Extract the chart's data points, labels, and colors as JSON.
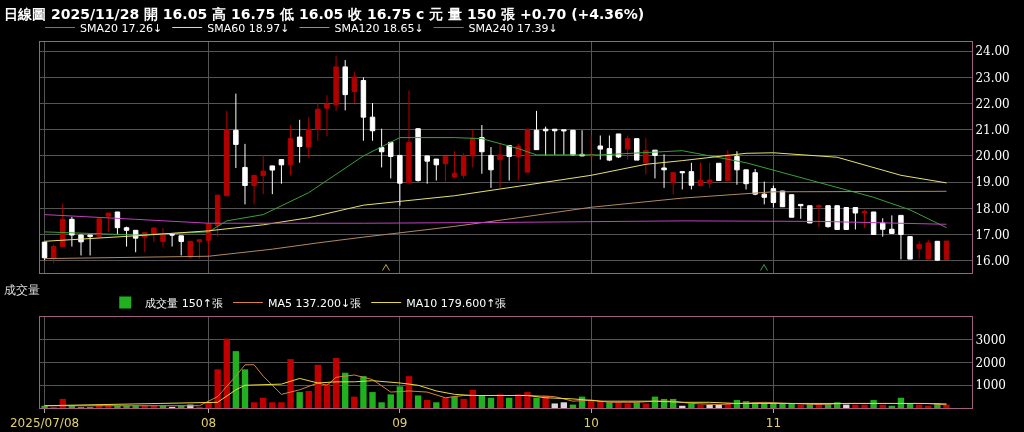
{
  "chart_data": [
    {
      "type": "candlestick",
      "title": "日線圖 2025/11/28 開 16.05 高 16.75 低 16.05 收 16.75 c 元 量 150 張 +0.70 (+4.36%)",
      "categories": [
        "2025/07/08",
        null,
        null,
        null,
        null,
        null,
        null,
        null,
        null,
        null,
        null,
        null,
        null,
        null,
        null,
        null,
        null,
        null,
        "08",
        null,
        null,
        null,
        null,
        null,
        null,
        null,
        null,
        null,
        null,
        null,
        null,
        null,
        null,
        null,
        null,
        null,
        null,
        null,
        null,
        "09",
        null,
        null,
        null,
        null,
        null,
        null,
        null,
        null,
        null,
        null,
        null,
        null,
        null,
        null,
        null,
        null,
        null,
        null,
        null,
        null,
        "10",
        null,
        null,
        null,
        null,
        null,
        null,
        null,
        null,
        null,
        null,
        null,
        null,
        null,
        null,
        null,
        null,
        null,
        null,
        null,
        "11",
        null,
        null,
        null,
        null,
        null,
        null,
        null,
        null,
        null,
        null,
        null,
        null,
        null,
        null,
        null,
        null,
        null,
        null,
        null
      ],
      "ohlc": [
        [
          16.71,
          16.71,
          16.02,
          16.11
        ],
        [
          16.1,
          16.62,
          15.9,
          16.54
        ],
        [
          16.54,
          18.18,
          16.54,
          17.58
        ],
        [
          17.58,
          17.67,
          16.54,
          16.98
        ],
        [
          16.98,
          17.0,
          16.2,
          16.72
        ],
        [
          16.98,
          16.98,
          16.2,
          16.92
        ],
        [
          16.92,
          17.6,
          16.92,
          17.6
        ],
        [
          17.7,
          17.82,
          17.1,
          17.82
        ],
        [
          17.86,
          17.86,
          16.98,
          17.26
        ],
        [
          17.26,
          17.3,
          16.54,
          17.16
        ],
        [
          17.16,
          17.16,
          16.32,
          16.86
        ],
        [
          16.9,
          17.07,
          16.32,
          17.07
        ],
        [
          17.04,
          17.25,
          16.72,
          17.25
        ],
        [
          16.73,
          17.25,
          16.54,
          17.0
        ],
        [
          17.0,
          17.0,
          16.54,
          16.98
        ],
        [
          16.95,
          16.95,
          16.2,
          16.73
        ],
        [
          16.14,
          16.74,
          16.08,
          16.74
        ],
        [
          16.72,
          16.8,
          16.08,
          16.8
        ],
        [
          16.78,
          17.4,
          16.2,
          17.4
        ],
        [
          17.34,
          18.5,
          16.92,
          18.5
        ],
        [
          18.48,
          21.72,
          18.48,
          21.0
        ],
        [
          20.98,
          22.38,
          19.54,
          20.44
        ],
        [
          19.56,
          20.46,
          18.15,
          18.87
        ],
        [
          18.87,
          19.26,
          18.15,
          19.26
        ],
        [
          19.25,
          20.04,
          18.54,
          19.42
        ],
        [
          19.62,
          19.62,
          18.54,
          19.46
        ],
        [
          19.86,
          19.86,
          18.94,
          19.66
        ],
        [
          19.66,
          21.18,
          19.26,
          20.66
        ],
        [
          20.72,
          21.38,
          19.74,
          20.36
        ],
        [
          20.34,
          21.48,
          19.92,
          21.02
        ],
        [
          21.02,
          22.02,
          20.58,
          21.78
        ],
        [
          21.82,
          22.32,
          20.76,
          21.98
        ],
        [
          21.96,
          23.82,
          21.72,
          23.4
        ],
        [
          23.4,
          23.66,
          21.74,
          22.34
        ],
        [
          22.46,
          23.22,
          22.02,
          23.01
        ],
        [
          22.88,
          23.0,
          20.58,
          21.48
        ],
        [
          21.48,
          22.02,
          20.58,
          20.96
        ],
        [
          20.32,
          21.04,
          19.56,
          20.16
        ],
        [
          20.52,
          20.52,
          19.14,
          19.98
        ],
        [
          20.02,
          20.02,
          18.1,
          18.96
        ],
        [
          18.98,
          22.5,
          18.98,
          20.52
        ],
        [
          21.04,
          21.06,
          19.02,
          19.06
        ],
        [
          20.0,
          20.0,
          18.94,
          19.8
        ],
        [
          19.88,
          19.88,
          19.06,
          19.66
        ],
        [
          19.7,
          19.98,
          19.02,
          19.98
        ],
        [
          19.2,
          20.18,
          19.14,
          19.34
        ],
        [
          19.26,
          20.1,
          19.14,
          20.0
        ],
        [
          20.0,
          21.0,
          19.56,
          20.68
        ],
        [
          20.7,
          21.18,
          19.32,
          20.16
        ],
        [
          20.02,
          20.34,
          18.78,
          19.47
        ],
        [
          19.86,
          20.46,
          18.78,
          20.04
        ],
        [
          20.4,
          20.4,
          19.06,
          19.98
        ],
        [
          19.98,
          20.46,
          19.08,
          20.36
        ],
        [
          19.38,
          21.02,
          19.38,
          21.02
        ],
        [
          20.98,
          21.72,
          20.24,
          20.24
        ],
        [
          21.02,
          21.12,
          20.02,
          20.96
        ],
        [
          21.02,
          21.02,
          20.04,
          20.96
        ],
        [
          21.0,
          21.0,
          20.04,
          20.96
        ],
        [
          20.98,
          20.98,
          20.0,
          20.04
        ],
        [
          20.06,
          20.98,
          20.0,
          20.0
        ],
        [
          20.0,
          20.78,
          20.0,
          20.06
        ],
        [
          20.38,
          20.78,
          19.86,
          20.26
        ],
        [
          20.28,
          20.78,
          19.8,
          19.84
        ],
        [
          20.84,
          20.84,
          19.92,
          19.96
        ],
        [
          20.26,
          20.78,
          19.86,
          20.66
        ],
        [
          20.66,
          20.66,
          19.84,
          19.84
        ],
        [
          19.74,
          20.68,
          19.3,
          20.2
        ],
        [
          20.22,
          20.22,
          19.14,
          20.02
        ],
        [
          19.54,
          20.06,
          18.78,
          19.47
        ],
        [
          18.99,
          19.36,
          18.54,
          19.36
        ],
        [
          19.4,
          19.4,
          18.72,
          19.36
        ],
        [
          19.4,
          19.74,
          18.72,
          18.88
        ],
        [
          18.87,
          19.74,
          18.84,
          19.06
        ],
        [
          18.96,
          19.74,
          18.78,
          19.08
        ],
        [
          19.72,
          19.72,
          19.06,
          19.06
        ],
        [
          19.06,
          20.22,
          19.06,
          20.04
        ],
        [
          19.98,
          20.18,
          18.9,
          19.47
        ],
        [
          19.47,
          19.47,
          18.72,
          18.94
        ],
        [
          19.36,
          19.5,
          18.5,
          18.54
        ],
        [
          18.54,
          19.02,
          18.15,
          18.42
        ],
        [
          18.75,
          18.87,
          18.03,
          18.22
        ],
        [
          18.66,
          18.66,
          18.06,
          18.06
        ],
        [
          18.52,
          18.52,
          17.66,
          17.66
        ],
        [
          18.15,
          18.15,
          17.6,
          18.1
        ],
        [
          18.1,
          18.1,
          17.44,
          17.44
        ],
        [
          18.05,
          18.15,
          17.28,
          18.1
        ],
        [
          18.1,
          18.1,
          17.26,
          17.3
        ],
        [
          18.1,
          18.1,
          17.19,
          17.19
        ],
        [
          18.03,
          18.03,
          17.19,
          17.19
        ],
        [
          18.03,
          18.03,
          17.19,
          17.82
        ],
        [
          17.82,
          17.94,
          17.25,
          17.88
        ],
        [
          17.86,
          17.86,
          17.0,
          17.0
        ],
        [
          17.44,
          17.62,
          16.92,
          17.2
        ],
        [
          17.2,
          17.73,
          17.04,
          17.04
        ],
        [
          17.73,
          17.73,
          16.05,
          17.0
        ],
        [
          16.92,
          16.92,
          16.06,
          16.06
        ],
        [
          16.47,
          16.74,
          16.08,
          16.62
        ],
        [
          16.06,
          16.8,
          16.06,
          16.68
        ],
        [
          16.74,
          16.74,
          15.99,
          16.02
        ],
        [
          16.05,
          16.75,
          16.05,
          16.75
        ]
      ],
      "colors": [
        "#ffffff",
        "#b00000",
        "#b00000",
        "#ffffff",
        "#ffffff",
        "#ffffff",
        "#b00000",
        "#b00000",
        "#ffffff",
        "#ffffff",
        "#ffffff",
        "#b00000",
        "#b00000",
        "#b00000",
        "#ffffff",
        "#ffffff",
        "#b00000",
        "#b00000",
        "#b00000",
        "#b00000",
        "#b00000",
        "#ffffff",
        "#ffffff",
        "#b00000",
        "#b00000",
        "#ffffff",
        "#ffffff",
        "#b00000",
        "#ffffff",
        "#b00000",
        "#b00000",
        "#b00000",
        "#b00000",
        "#ffffff",
        "#b00000",
        "#ffffff",
        "#ffffff",
        "#ffffff",
        "#ffffff",
        "#ffffff",
        "#b00000",
        "#ffffff",
        "#ffffff",
        "#ffffff",
        "#b00000",
        "#b00000",
        "#b00000",
        "#b00000",
        "#ffffff",
        "#ffffff",
        "#b00000",
        "#ffffff",
        "#b00000",
        "#b00000",
        "#ffffff",
        "#ffffff",
        "#ffffff",
        "#ffffff",
        "#ffffff",
        "#ffffff",
        "#b00000",
        "#ffffff",
        "#ffffff",
        "#ffffff",
        "#b00000",
        "#ffffff",
        "#b00000",
        "#ffffff",
        "#ffffff",
        "#b00000",
        "#ffffff",
        "#ffffff",
        "#b00000",
        "#b00000",
        "#ffffff",
        "#b00000",
        "#ffffff",
        "#ffffff",
        "#ffffff",
        "#ffffff",
        "#ffffff",
        "#ffffff",
        "#ffffff",
        "#ffffff",
        "#ffffff",
        "#b00000",
        "#ffffff",
        "#ffffff",
        "#ffffff",
        "#ffffff",
        "#b00000",
        "#ffffff",
        "#ffffff",
        "#ffffff",
        "#ffffff",
        "#ffffff",
        "#b00000",
        "#b00000",
        "#ffffff",
        "#b00000"
      ],
      "series": [
        {
          "type": "line",
          "name": "SMA20 17.26↓",
          "color": "#3aa03a",
          "values": [
            17.1,
            null,
            null,
            null,
            null,
            null,
            null,
            null,
            null,
            null,
            16.98,
            null,
            null,
            null,
            null,
            null,
            null,
            null,
            17.1,
            null,
            17.52,
            null,
            null,
            null,
            17.76,
            null,
            null,
            null,
            null,
            18.6,
            null,
            null,
            null,
            null,
            null,
            20.0,
            null,
            null,
            null,
            20.7,
            null,
            null,
            null,
            null,
            null,
            20.7,
            null,
            null,
            20.66,
            null,
            null,
            null,
            20.28,
            null,
            20.04,
            null,
            null,
            null,
            null,
            null,
            null,
            20.04,
            null,
            null,
            null,
            null,
            null,
            null,
            null,
            null,
            20.2,
            null,
            null,
            null,
            null,
            null,
            null,
            19.74,
            null,
            null,
            null,
            null,
            null,
            null,
            19.08,
            null,
            null,
            null,
            null,
            null,
            null,
            18.42,
            null,
            null,
            null,
            17.94,
            null,
            null,
            null,
            17.26
          ]
        },
        {
          "type": "line",
          "name": "SMA60 18.97↓",
          "color": "#e8e070",
          "values": [
            16.74,
            null,
            null,
            null,
            null,
            null,
            null,
            null,
            null,
            null,
            16.95,
            null,
            null,
            null,
            null,
            null,
            null,
            null,
            17.14,
            null,
            null,
            null,
            null,
            null,
            17.37,
            null,
            null,
            null,
            null,
            17.64,
            null,
            null,
            null,
            null,
            null,
            18.12,
            null,
            null,
            null,
            null,
            null,
            null,
            null,
            null,
            null,
            18.48,
            null,
            null,
            null,
            null,
            null,
            null,
            18.84,
            null,
            null,
            null,
            null,
            null,
            null,
            null,
            19.26,
            null,
            null,
            null,
            null,
            null,
            19.68,
            null,
            null,
            null,
            19.82,
            null,
            null,
            null,
            null,
            null,
            null,
            20.1,
            null,
            null,
            20.12,
            null,
            null,
            null,
            null,
            null,
            null,
            19.95,
            null,
            null,
            null,
            null,
            null,
            null,
            19.26,
            null,
            null,
            null,
            null,
            18.97
          ]
        },
        {
          "type": "line",
          "name": "SMA120 18.65↓",
          "color": "#b08860",
          "values": [
            16.08,
            null,
            null,
            null,
            null,
            null,
            null,
            null,
            null,
            null,
            null,
            null,
            null,
            null,
            null,
            null,
            null,
            null,
            16.17,
            null,
            null,
            null,
            null,
            null,
            null,
            16.44,
            null,
            null,
            null,
            null,
            16.68,
            null,
            null,
            null,
            null,
            16.9,
            null,
            null,
            null,
            null,
            null,
            null,
            null,
            null,
            null,
            17.31,
            null,
            null,
            null,
            null,
            null,
            null,
            17.64,
            null,
            null,
            null,
            null,
            null,
            null,
            null,
            18.04,
            null,
            null,
            null,
            null,
            null,
            null,
            null,
            null,
            null,
            18.39,
            null,
            null,
            null,
            null,
            null,
            null,
            null,
            null,
            null,
            18.63,
            null,
            null,
            null,
            null,
            null,
            null,
            null,
            null,
            null,
            null,
            null,
            null,
            null,
            null,
            null,
            null,
            null,
            null,
            18.65
          ]
        },
        {
          "type": "line",
          "name": "SMA240 17.39↓",
          "color": "#c040c0",
          "values": [
            17.76,
            null,
            null,
            null,
            null,
            null,
            null,
            null,
            null,
            null,
            17.58,
            null,
            null,
            null,
            null,
            null,
            null,
            null,
            17.43,
            null,
            null,
            null,
            null,
            null,
            null,
            null,
            null,
            null,
            null,
            null,
            null,
            null,
            null,
            null,
            null,
            17.43,
            null,
            null,
            null,
            null,
            null,
            null,
            null,
            null,
            null,
            null,
            null,
            null,
            null,
            null,
            17.46,
            null,
            null,
            null,
            null,
            null,
            null,
            null,
            null,
            null,
            null,
            null,
            null,
            null,
            null,
            null,
            null,
            null,
            null,
            null,
            17.52,
            null,
            null,
            null,
            null,
            null,
            null,
            null,
            null,
            null,
            null,
            null,
            null,
            null,
            null,
            17.5,
            null,
            null,
            null,
            null,
            null,
            null,
            null,
            null,
            null,
            null,
            null,
            null,
            null,
            17.39
          ]
        }
      ],
      "ylim": [
        15.53,
        24.35
      ],
      "yticks": [
        {
          "value": 16,
          "label": "16.00"
        },
        {
          "value": 17,
          "label": "17.00"
        },
        {
          "value": 18,
          "label": "18.00"
        },
        {
          "value": 19,
          "label": "19.00"
        },
        {
          "value": 20,
          "label": "20.00"
        },
        {
          "value": 21,
          "label": "21.00"
        },
        {
          "value": 22,
          "label": "22.00"
        },
        {
          "value": 23,
          "label": "23.00"
        },
        {
          "value": 24,
          "label": "24.00"
        }
      ],
      "grid": true,
      "legend": "top left",
      "tick_labels": "y"
    },
    {
      "type": "bar",
      "title": "成交量",
      "categories": [
        "2025/07/08",
        null,
        null,
        null,
        null,
        null,
        null,
        null,
        null,
        null,
        null,
        null,
        null,
        null,
        null,
        null,
        null,
        null,
        "08",
        null,
        null,
        null,
        null,
        null,
        null,
        null,
        null,
        null,
        null,
        null,
        null,
        null,
        null,
        null,
        null,
        null,
        null,
        null,
        null,
        "09",
        null,
        null,
        null,
        null,
        null,
        null,
        null,
        null,
        null,
        null,
        null,
        null,
        null,
        null,
        null,
        null,
        null,
        null,
        null,
        null,
        "10",
        null,
        null,
        null,
        null,
        null,
        null,
        null,
        null,
        null,
        null,
        null,
        null,
        null,
        null,
        null,
        null,
        null,
        null,
        null,
        "11",
        null,
        null,
        null,
        null,
        null,
        null,
        null,
        null,
        null,
        null,
        null,
        null,
        null,
        null,
        null,
        null,
        null,
        null,
        null
      ],
      "series": [
        {
          "type": "bar",
          "name": "成交量 150↑張",
          "colors": [
            "#20b020",
            "#c00000",
            "#c00000",
            "#20b020",
            "#20b020",
            "#20b020",
            "#c00000",
            "#c00000",
            "#20b020",
            "#20b020",
            "#20b020",
            "#c00000",
            "#c00000",
            "#20b020",
            "#d8d8d8",
            "#20b020",
            "#d8d8d8",
            "#c00000",
            "#c00000",
            "#c00000",
            "#c00000",
            "#20b020",
            "#20b020",
            "#c00000",
            "#c00000",
            "#c00000",
            "#c00000",
            "#c00000",
            "#20b020",
            "#c00000",
            "#c00000",
            "#c00000",
            "#c00000",
            "#20b020",
            "#c00000",
            "#20b020",
            "#20b020",
            "#20b020",
            "#20b020",
            "#20b020",
            "#c00000",
            "#20b020",
            "#c00000",
            "#20b020",
            "#c00000",
            "#20b020",
            "#c00000",
            "#c00000",
            "#20b020",
            "#20b020",
            "#c00000",
            "#20b020",
            "#c00000",
            "#c00000",
            "#20b020",
            "#c00000",
            "#d8d8d8",
            "#d8d8d8",
            "#20b020",
            "#20b020",
            "#c00000",
            "#c00000",
            "#20b020",
            "#c00000",
            "#c00000",
            "#20b020",
            "#c00000",
            "#20b020",
            "#20b020",
            "#20b020",
            "#d8d8d8",
            "#20b020",
            "#c00000",
            "#d8d8d8",
            "#d8d8d8",
            "#c00000",
            "#20b020",
            "#20b020",
            "#20b020",
            "#20b020",
            "#20b020",
            "#20b020",
            "#20b020",
            "#c00000",
            "#20b020",
            "#c00000",
            "#20b020",
            "#20b020",
            "#d8d8d8",
            "#c00000",
            "#c00000",
            "#20b020",
            "#c00000",
            "#20b020",
            "#20b020",
            "#20b020",
            "#c00000",
            "#c00000",
            "#20b020",
            "#c00000"
          ],
          "values": [
            100,
            50,
            400,
            100,
            50,
            50,
            150,
            100,
            100,
            100,
            100,
            100,
            100,
            100,
            50,
            100,
            150,
            50,
            250,
            1700,
            3050,
            2500,
            1700,
            250,
            450,
            250,
            250,
            2150,
            700,
            750,
            1900,
            1050,
            2200,
            1550,
            500,
            1400,
            700,
            250,
            600,
            950,
            1400,
            550,
            350,
            250,
            450,
            500,
            400,
            800,
            550,
            450,
            600,
            450,
            600,
            700,
            450,
            550,
            200,
            250,
            150,
            500,
            350,
            300,
            250,
            250,
            200,
            250,
            200,
            500,
            400,
            400,
            100,
            200,
            150,
            150,
            150,
            200,
            350,
            300,
            250,
            250,
            250,
            200,
            200,
            150,
            200,
            150,
            200,
            250,
            150,
            150,
            150,
            350,
            150,
            100,
            450,
            200,
            150,
            100,
            200,
            150
          ]
        },
        {
          "type": "line",
          "name": "MA5 137.200↓張",
          "color": "#d88040",
          "values": [
            100,
            null,
            null,
            null,
            null,
            null,
            null,
            null,
            null,
            null,
            null,
            null,
            null,
            null,
            null,
            null,
            null,
            100,
            null,
            500,
            null,
            1400,
            1900,
            1900,
            1400,
            null,
            600,
            null,
            800,
            null,
            1100,
            1000,
            1350,
            null,
            1450,
            null,
            1250,
            null,
            700,
            null,
            750,
            null,
            700,
            null,
            450,
            null,
            550,
            null,
            550,
            null,
            550,
            null,
            null,
            550,
            null,
            null,
            500,
            null,
            300,
            null,
            350,
            null,
            250,
            null,
            null,
            250,
            null,
            300,
            null,
            300,
            null,
            200,
            null,
            null,
            150,
            null,
            200,
            null,
            null,
            250,
            null,
            null,
            200,
            null,
            null,
            150,
            null,
            null,
            200,
            null,
            null,
            200,
            null,
            null,
            200,
            null,
            null,
            200,
            null,
            137.2
          ]
        },
        {
          "type": "line",
          "name": "MA10 179.600↑張",
          "color": "#e8d840",
          "values": [
            100,
            null,
            null,
            null,
            null,
            null,
            null,
            null,
            null,
            null,
            null,
            null,
            null,
            null,
            null,
            null,
            null,
            null,
            null,
            250,
            null,
            800,
            1000,
            null,
            null,
            null,
            1050,
            null,
            1300,
            null,
            1100,
            null,
            1150,
            null,
            1150,
            null,
            1200,
            null,
            null,
            1100,
            null,
            1000,
            null,
            750,
            null,
            600,
            null,
            550,
            null,
            null,
            550,
            null,
            null,
            550,
            null,
            450,
            null,
            null,
            400,
            null,
            null,
            300,
            null,
            null,
            300,
            null,
            null,
            300,
            null,
            null,
            250,
            null,
            null,
            250,
            null,
            null,
            200,
            null,
            null,
            null,
            200,
            null,
            null,
            null,
            200,
            null,
            null,
            null,
            200,
            null,
            null,
            null,
            200,
            null,
            null,
            null,
            200,
            null,
            null,
            179.6
          ]
        }
      ],
      "ylim": [
        0,
        4000
      ],
      "yticks": [
        1000,
        2000,
        3000
      ],
      "grid": true,
      "legend": "top left"
    }
  ]
}
